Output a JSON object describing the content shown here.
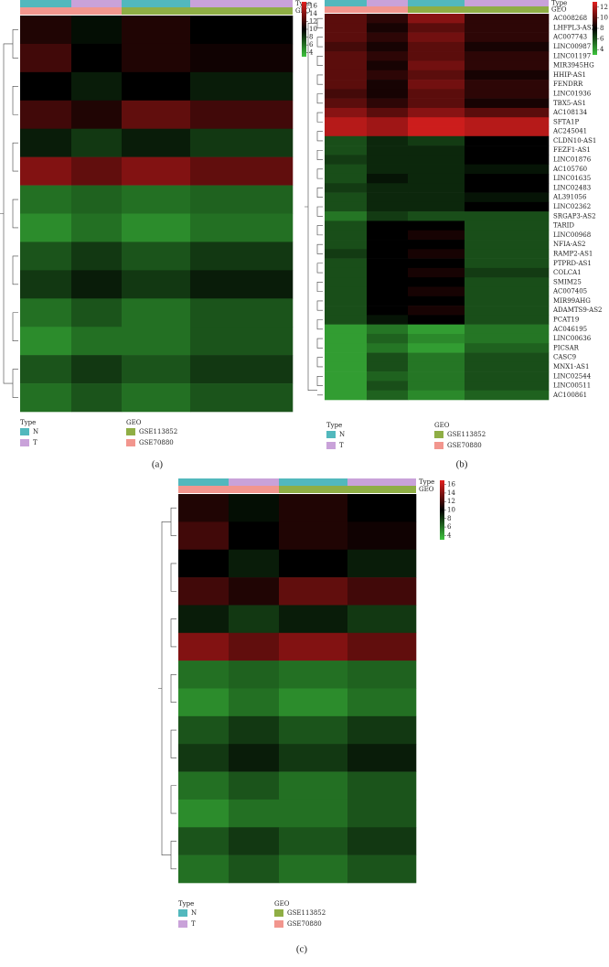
{
  "chart_data": [
    {
      "type": "heatmap",
      "panel": "(a)",
      "annotation_labels": [
        "Type",
        "GEO"
      ],
      "col_type": [
        "N",
        "T",
        "N",
        "T"
      ],
      "col_geo": [
        "GSE70880",
        "GSE70880",
        "GSE113852",
        "GSE113852"
      ],
      "values": [
        [
          11,
          9.5,
          11,
          10
        ],
        [
          12,
          10,
          11,
          10.5
        ],
        [
          10,
          9,
          10,
          9
        ],
        [
          12,
          11,
          13,
          12
        ],
        [
          9,
          8,
          9,
          8
        ],
        [
          14,
          13,
          14,
          13
        ],
        [
          6,
          6.5,
          6,
          6.5
        ],
        [
          5,
          6,
          5,
          6
        ],
        [
          7,
          8,
          7,
          8
        ],
        [
          8,
          9,
          8,
          9
        ],
        [
          6,
          7,
          6,
          7
        ],
        [
          5,
          6,
          6,
          7
        ],
        [
          7,
          8,
          7,
          8
        ],
        [
          6,
          7,
          6,
          7
        ]
      ],
      "clim": [
        3,
        17
      ],
      "colorbar_ticks": [
        16,
        14,
        12,
        10,
        8,
        6,
        4
      ],
      "colors": [
        "#3ec43e",
        "#000000",
        "#e3201f"
      ],
      "legend": {
        "type_title": "Type",
        "type": [
          {
            "name": "N",
            "color": "#52b8bd"
          },
          {
            "name": "T",
            "color": "#c9a2d9"
          }
        ],
        "geo_title": "GEO",
        "geo": [
          {
            "name": "GSE113852",
            "color": "#8fae45"
          },
          {
            "name": "GSE70880",
            "color": "#f2968e"
          }
        ]
      }
    },
    {
      "type": "heatmap",
      "panel": "(b)",
      "annotation_labels": [
        "Type",
        "GEO"
      ],
      "col_type": [
        "N",
        "T",
        "N",
        "T"
      ],
      "col_geo": [
        "GSE70880",
        "GSE70880",
        "GSE113852",
        "GSE113852"
      ],
      "rows": [
        "AC008268",
        "LHFPL3-AS2",
        "AC007743",
        "LINC00987",
        "LINC01197",
        "MIR3945HG",
        "HHIP-AS1",
        "FENDRR",
        "LINC01936",
        "TBX5-AS1",
        "AC108134",
        "SFTA1P",
        "AC245041",
        "CLDN10-AS1",
        "FEZF1-AS1",
        "LINC01876",
        "AC105760",
        "LINC01635",
        "LINC02483",
        "AL391056",
        "LINC02362",
        "SRGAP3-AS2",
        "TARID",
        "LINC00968",
        "NFIA-AS2",
        "RAMP2-AS1",
        "PTPRD-AS1",
        "COLCA1",
        "SMIM25",
        "AC007405",
        "MIR99AHG",
        "ADAMTS9-AS2",
        "PCAT19",
        "AC046195",
        "LINC00636",
        "PICSAR",
        "CASC9",
        "MNX1-AS1",
        "LINC02544",
        "LINC00511",
        "AC100861"
      ],
      "values": [
        [
          10,
          9,
          11,
          9
        ],
        [
          10,
          8.5,
          10,
          9
        ],
        [
          10,
          9,
          10.5,
          9
        ],
        [
          9.5,
          8.5,
          10,
          8.5
        ],
        [
          10,
          9,
          10,
          9
        ],
        [
          10,
          8.5,
          10.5,
          9
        ],
        [
          10,
          9,
          10,
          8.5
        ],
        [
          10,
          8.5,
          10.5,
          9
        ],
        [
          9.5,
          8.5,
          10,
          9
        ],
        [
          10,
          9,
          10,
          8.5
        ],
        [
          11,
          10,
          11,
          10
        ],
        [
          12,
          11.5,
          12.5,
          12
        ],
        [
          12,
          11.5,
          12.5,
          12
        ],
        [
          6,
          7,
          6.5,
          8
        ],
        [
          6,
          7,
          7,
          8
        ],
        [
          6.5,
          7,
          7,
          8
        ],
        [
          6,
          7,
          7,
          7.5
        ],
        [
          6,
          7.5,
          7,
          8
        ],
        [
          6.5,
          7,
          7,
          8
        ],
        [
          6,
          7,
          7,
          7.5
        ],
        [
          6,
          7,
          7,
          8
        ],
        [
          5,
          6.5,
          6,
          6
        ],
        [
          6,
          8,
          8,
          6
        ],
        [
          6,
          8,
          8.5,
          6
        ],
        [
          6,
          8,
          8,
          6
        ],
        [
          6.5,
          8,
          8.5,
          6
        ],
        [
          6,
          8,
          8,
          6
        ],
        [
          6,
          8,
          8.5,
          6.5
        ],
        [
          6,
          8,
          8,
          6
        ],
        [
          6,
          8,
          8.5,
          6
        ],
        [
          6,
          8,
          8,
          6
        ],
        [
          6,
          8,
          8.5,
          6
        ],
        [
          6,
          7.5,
          8,
          6
        ],
        [
          4,
          5,
          4,
          5
        ],
        [
          4,
          5.5,
          4.5,
          5
        ],
        [
          4,
          5,
          4,
          5.5
        ],
        [
          4,
          6,
          5,
          6
        ],
        [
          4,
          6,
          5,
          6
        ],
        [
          4,
          5.5,
          5,
          6
        ],
        [
          4,
          6,
          5,
          6
        ],
        [
          4,
          5.5,
          4.5,
          5.5
        ]
      ],
      "clim": [
        3,
        13
      ],
      "colorbar_ticks": [
        12,
        10,
        8,
        6,
        4
      ],
      "colors": [
        "#3ec43e",
        "#000000",
        "#e3201f"
      ],
      "legend": {
        "type_title": "Type",
        "type": [
          {
            "name": "N",
            "color": "#52b8bd"
          },
          {
            "name": "T",
            "color": "#c9a2d9"
          }
        ],
        "geo_title": "GEO",
        "geo": [
          {
            "name": "GSE113852",
            "color": "#8fae45"
          },
          {
            "name": "GSE70880",
            "color": "#f2968e"
          }
        ]
      }
    },
    {
      "type": "heatmap",
      "panel": "(c)",
      "annotation_labels": [
        "Type",
        "GEO"
      ],
      "col_type": [
        "N",
        "T",
        "N",
        "T"
      ],
      "col_geo": [
        "GSE70880",
        "GSE70880",
        "GSE113852",
        "GSE113852"
      ],
      "values": [
        [
          11,
          9.5,
          11,
          10
        ],
        [
          12,
          10,
          11,
          10.5
        ],
        [
          10,
          9,
          10,
          9
        ],
        [
          12,
          11,
          13,
          12
        ],
        [
          9,
          8,
          9,
          8
        ],
        [
          14,
          13,
          14,
          13
        ],
        [
          6,
          6.5,
          6,
          6.5
        ],
        [
          5,
          6,
          5,
          6
        ],
        [
          7,
          8,
          7,
          8
        ],
        [
          8,
          9,
          8,
          9
        ],
        [
          6,
          7,
          6,
          7
        ],
        [
          5,
          6,
          6,
          7
        ],
        [
          7,
          8,
          7,
          8
        ],
        [
          6,
          7,
          6,
          7
        ]
      ],
      "clim": [
        3,
        17
      ],
      "colorbar_ticks": [
        16,
        14,
        12,
        10,
        8,
        6,
        4
      ],
      "colors": [
        "#3ec43e",
        "#000000",
        "#e3201f"
      ],
      "legend": {
        "type_title": "Type",
        "type": [
          {
            "name": "N",
            "color": "#52b8bd"
          },
          {
            "name": "T",
            "color": "#c9a2d9"
          }
        ],
        "geo_title": "GEO",
        "geo": [
          {
            "name": "GSE113852",
            "color": "#8fae45"
          },
          {
            "name": "GSE70880",
            "color": "#f2968e"
          }
        ]
      }
    }
  ]
}
